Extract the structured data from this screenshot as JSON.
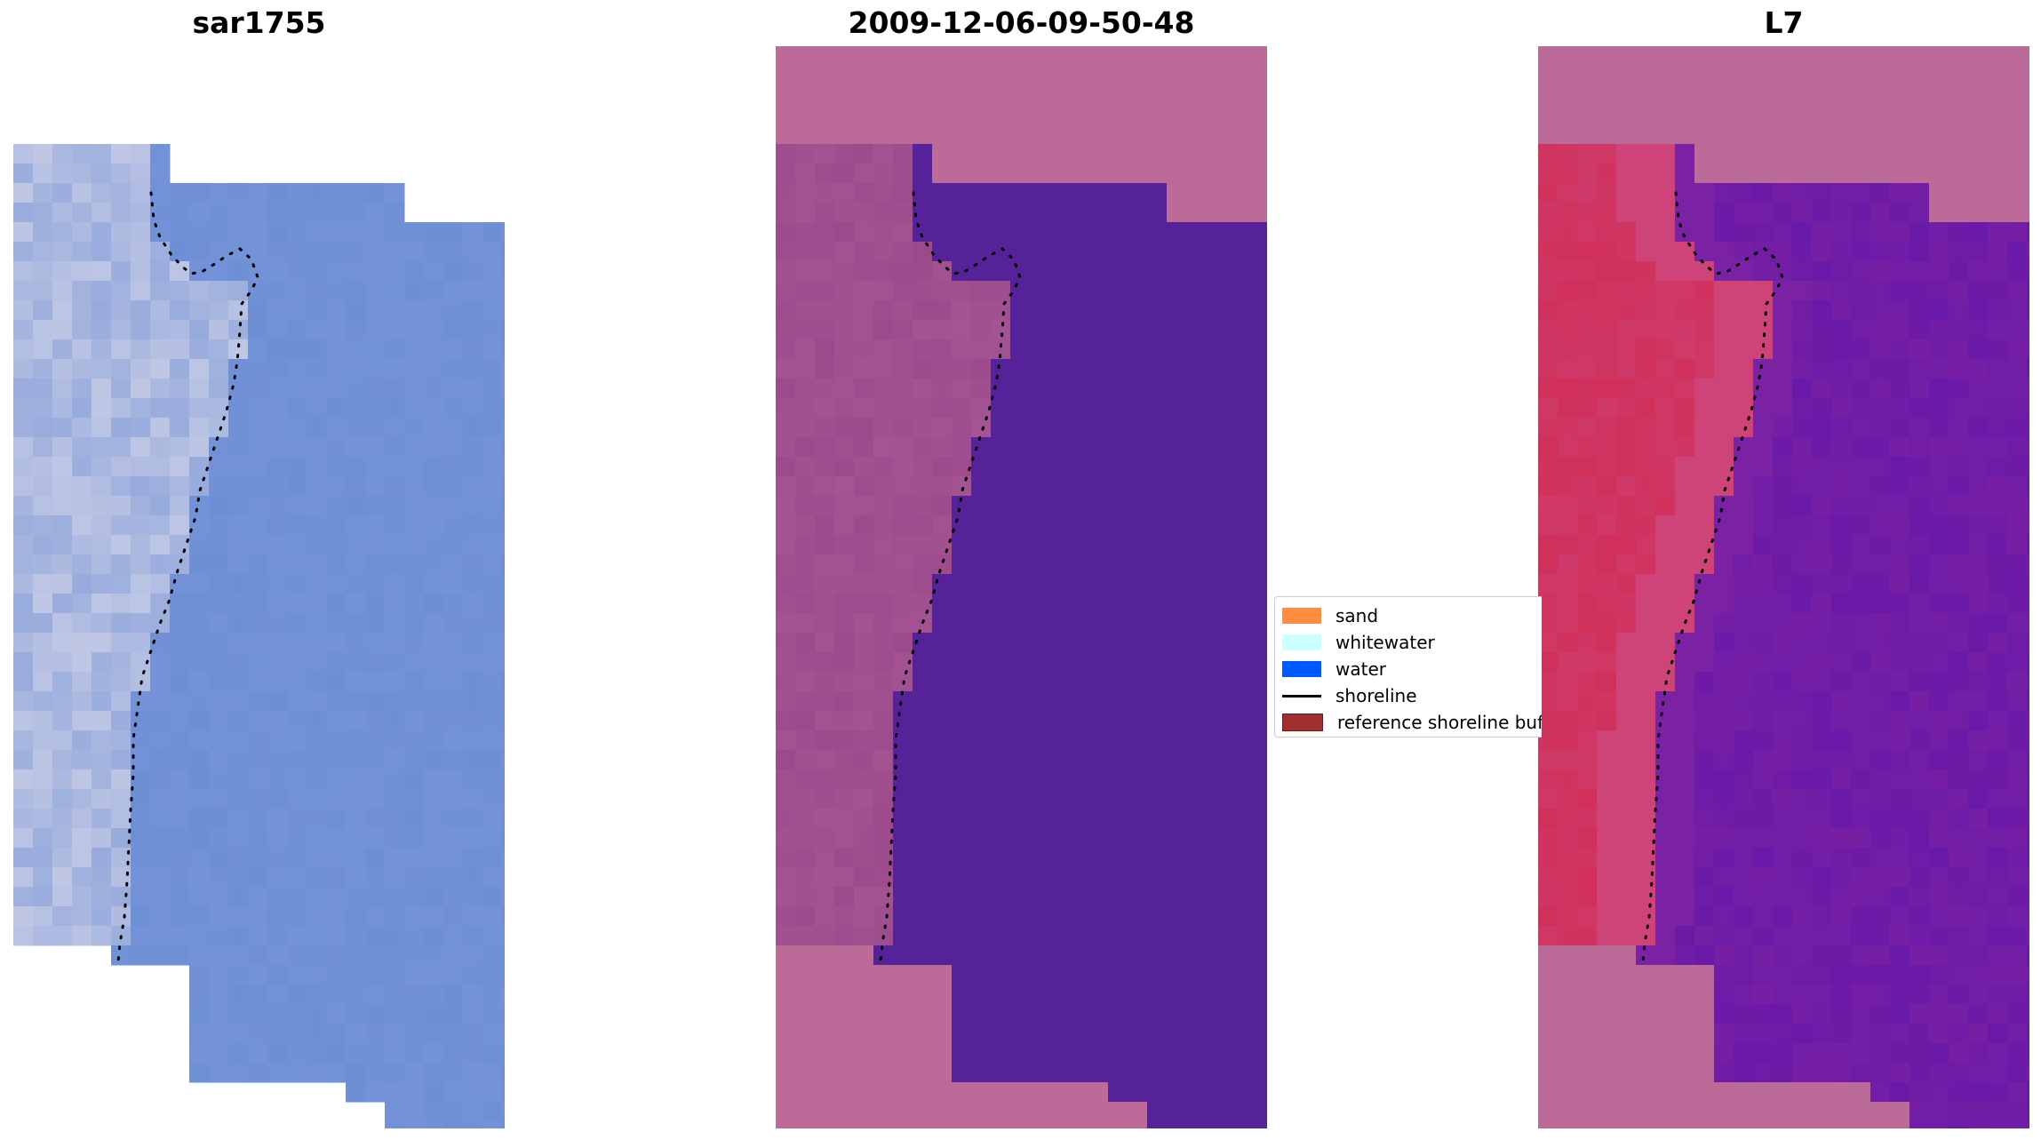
{
  "panels": [
    {
      "title": "sar1755"
    },
    {
      "title": "2009-12-06-09-50-48"
    },
    {
      "title": "L7"
    }
  ],
  "legend": {
    "items": [
      {
        "label": "sand",
        "color": "#ff8c40",
        "kind": "patch"
      },
      {
        "label": "whitewater",
        "color": "#ccffff",
        "kind": "patch"
      },
      {
        "label": "water",
        "color": "#0059ff",
        "kind": "patch"
      },
      {
        "label": "shoreline",
        "color": "#000000",
        "kind": "line"
      },
      {
        "label": "reference shoreline buffer",
        "color": "#a03030",
        "kind": "patch"
      }
    ]
  },
  "colors": {
    "rgb_tint": "#6f8fd4",
    "classified_water": "#55229a",
    "classified_land": "#9c4a8c",
    "nodata_mask": "#bc6a98",
    "mndwi_land": "#d0305a",
    "mndwi_water": "#6a1aa8"
  }
}
